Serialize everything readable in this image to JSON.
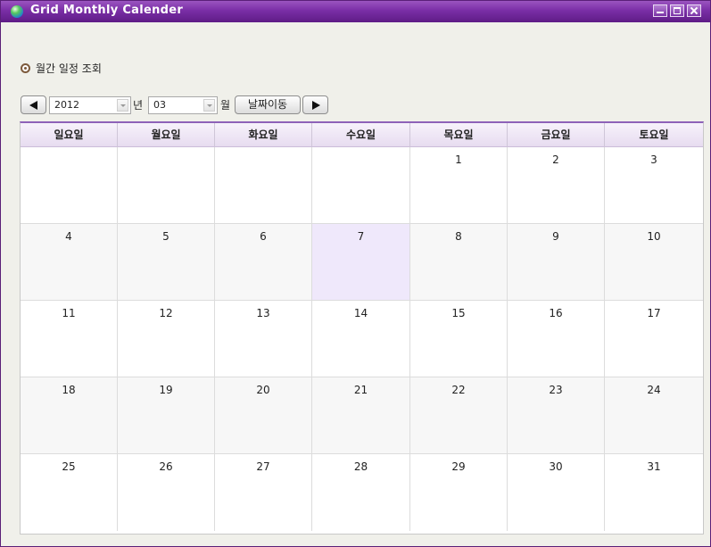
{
  "window": {
    "title": "Grid Monthly Calender"
  },
  "view_option": {
    "label": "월간 일정 조회"
  },
  "toolbar": {
    "year_value": "2012",
    "year_unit": "년",
    "month_value": "03",
    "month_unit": "월",
    "go_label": "날짜이동"
  },
  "calendar": {
    "weekdays": [
      "일요일",
      "월요일",
      "화요일",
      "수요일",
      "목요일",
      "금요일",
      "토요일"
    ],
    "weeks": [
      [
        "",
        "",
        "",
        "",
        "1",
        "2",
        "3"
      ],
      [
        "4",
        "5",
        "6",
        "7",
        "8",
        "9",
        "10"
      ],
      [
        "11",
        "12",
        "13",
        "14",
        "15",
        "16",
        "17"
      ],
      [
        "18",
        "19",
        "20",
        "21",
        "22",
        "23",
        "24"
      ],
      [
        "25",
        "26",
        "27",
        "28",
        "29",
        "30",
        "31"
      ]
    ],
    "today": "7"
  },
  "colors": {
    "titlebar": "#7a2ea6",
    "header_border": "#8e62b8",
    "today_bg": "#efe8fb"
  },
  "icons": {
    "app": "globe-icon",
    "prev": "triangle-left-icon",
    "next": "triangle-right-icon",
    "minimize": "minimize-icon",
    "maximize": "maximize-icon",
    "close": "close-icon"
  }
}
